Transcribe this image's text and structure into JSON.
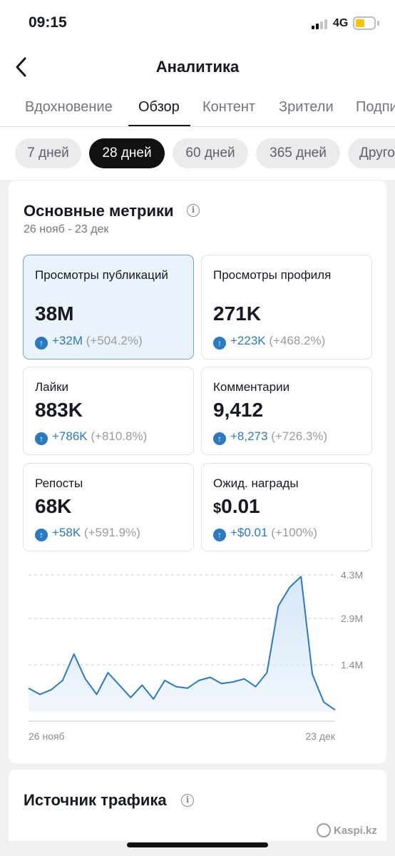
{
  "status_bar": {
    "time": "09:15",
    "network": "4G"
  },
  "nav": {
    "title": "Аналитика"
  },
  "tabs": [
    {
      "label": "Вдохновение",
      "active": false
    },
    {
      "label": "Обзор",
      "active": true
    },
    {
      "label": "Контент",
      "active": false
    },
    {
      "label": "Зрители",
      "active": false
    },
    {
      "label": "Подпис",
      "active": false
    }
  ],
  "periods": [
    {
      "label": "7 дней",
      "active": false
    },
    {
      "label": "28 дней",
      "active": true
    },
    {
      "label": "60 дней",
      "active": false
    },
    {
      "label": "365 дней",
      "active": false
    },
    {
      "label": "Другое",
      "active": false
    }
  ],
  "main_metrics": {
    "title": "Основные метрики",
    "date_range": "26 нояб - 23 дек",
    "items": [
      {
        "label": "Просмотры публикаций",
        "value": "38M",
        "delta": "+32M",
        "delta_pct": "(+504.2%)",
        "selected": true
      },
      {
        "label": "Просмотры профиля",
        "value": "271K",
        "delta": "+223K",
        "delta_pct": "(+468.2%)",
        "selected": false
      },
      {
        "label": "Лайки",
        "value": "883K",
        "delta": "+786K",
        "delta_pct": "(+810.8%)",
        "selected": false
      },
      {
        "label": "Комментарии",
        "value": "9,412",
        "delta": "+8,273",
        "delta_pct": "(+726.3%)",
        "selected": false
      },
      {
        "label": "Репосты",
        "value": "68K",
        "delta": "+58K",
        "delta_pct": "(+591.9%)",
        "selected": false
      },
      {
        "label": "Ожид. награды",
        "currency": "$",
        "value": "0.01",
        "delta": "+$0.01",
        "delta_pct": "(+100%)",
        "selected": false
      }
    ]
  },
  "chart_data": {
    "type": "area",
    "x_labels": [
      "26 нояб",
      "23 дек"
    ],
    "y_ticks": [
      {
        "value": 1.4,
        "label": "1.4M"
      },
      {
        "value": 2.9,
        "label": "2.9M"
      },
      {
        "value": 4.3,
        "label": "4.3M"
      }
    ],
    "ylim": [
      0,
      4.3
    ],
    "grid": true,
    "color": "#2b79bf",
    "fill_color": "#d6e7f7",
    "series": [
      {
        "values": [
          0.65,
          0.45,
          0.6,
          0.9,
          1.75,
          0.95,
          0.45,
          1.15,
          0.75,
          0.35,
          0.75,
          0.3,
          0.9,
          0.7,
          0.65,
          0.9,
          1.0,
          0.8,
          0.85,
          0.95,
          0.7,
          1.15,
          3.3,
          3.9,
          4.25,
          1.1,
          0.2,
          -0.05
        ]
      }
    ]
  },
  "traffic_source": {
    "title": "Источник трафика"
  },
  "watermark": "Kaspi.kz"
}
